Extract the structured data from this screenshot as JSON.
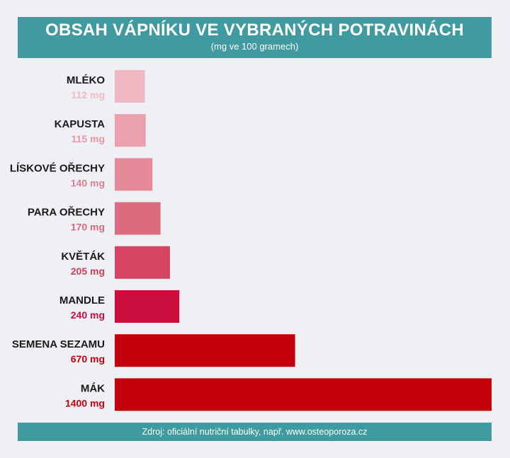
{
  "header": {
    "title": "OBSAH VÁPNÍKU VE VYBRANÝCH POTRAVINÁCH",
    "subtitle": "(mg ve 100 gramech)"
  },
  "footer": {
    "source": "Zdroj: oficiální nutriční tabulky, např. www.osteoporoza.cz"
  },
  "chart_data": {
    "type": "bar",
    "orientation": "horizontal",
    "title": "OBSAH VÁPNÍKU VE VYBRANÝCH POTRAVINÁCH",
    "subtitle": "(mg ve 100 gramech)",
    "unit": "mg",
    "categories": [
      "MLÉKO",
      "KAPUSTA",
      "LÍSKOVÉ OŘECHY",
      "PARA OŘECHY",
      "KVĚTÁK",
      "MANDLE",
      "SEMENA SEZAMU",
      "MÁK"
    ],
    "values": [
      112,
      115,
      140,
      170,
      205,
      240,
      670,
      1400
    ],
    "value_labels": [
      "112 mg",
      "115 mg",
      "140 mg",
      "170 mg",
      "205 mg",
      "240 mg",
      "670 mg",
      "1400 mg"
    ],
    "colors": [
      "#f0b8c2",
      "#eaa1ad",
      "#e48a99",
      "#dd6b7f",
      "#d64461",
      "#cc0e3f",
      "#c4000c",
      "#c4000c"
    ],
    "label_colors": [
      "#f0b8c2",
      "#e795a2",
      "#dd7f8f",
      "#d66a7d",
      "#cf3f5b",
      "#c40f40",
      "#c4000c",
      "#c4000c"
    ],
    "xlim": [
      0,
      1400
    ],
    "grid": false,
    "legend": "none"
  }
}
